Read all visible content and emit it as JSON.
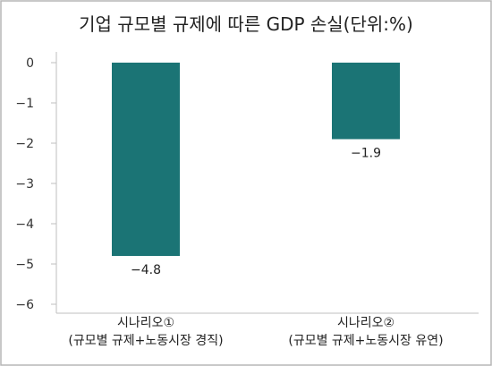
{
  "chart_data": {
    "type": "bar",
    "title": "기업 규모별 규제에 따른 GDP 손실(단위:%)",
    "categories": [
      [
        "시나리오①",
        "(규모별 규제+노동시장 경직)"
      ],
      [
        "시나리오②",
        "(규모별 규제+노동시장 유연)"
      ]
    ],
    "values": [
      -4.8,
      -1.9
    ],
    "data_labels": [
      "−4.8",
      "−1.9"
    ],
    "ylim": [
      -6,
      0
    ],
    "yticks": [
      0,
      -1,
      -2,
      -3,
      -4,
      -5,
      -6
    ],
    "ytick_labels": [
      "0",
      "−1",
      "−2",
      "−3",
      "−4",
      "−5",
      "−6"
    ],
    "xlabel": "",
    "ylabel": "",
    "grid": false,
    "colors": {
      "bar": "#1b7475",
      "axis": "#bfbfbf",
      "frame": "#b5b5b5",
      "text": "#222222"
    }
  }
}
